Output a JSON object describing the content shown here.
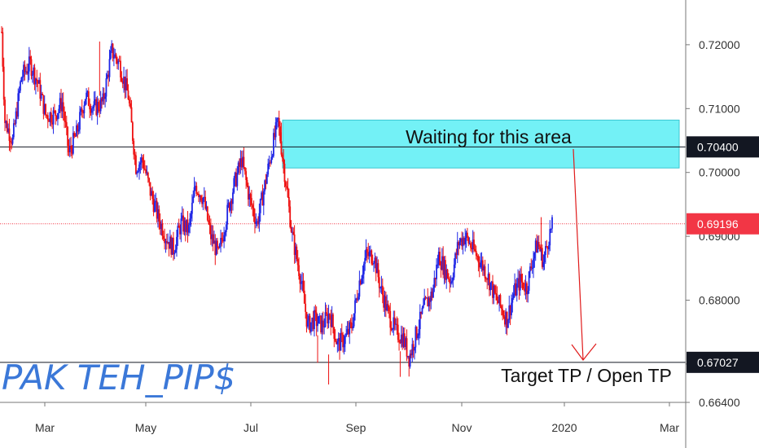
{
  "chart_data": {
    "type": "candlestick",
    "y_ticks": [
      "0.72000",
      "0.71000",
      "0.70000",
      "0.69000",
      "0.68000",
      "0.67000",
      "0.66400"
    ],
    "y_tick_values": [
      0.72,
      0.71,
      0.7,
      0.69,
      0.68,
      0.67,
      0.664
    ],
    "x_ticks": [
      "Mar",
      "May",
      "Jul",
      "Sep",
      "Nov",
      "2020",
      "Mar"
    ],
    "ylim": [
      0.664,
      0.727
    ],
    "horizontal_lines": [
      {
        "value": 0.704,
        "label": "0.70400",
        "color": "#131722",
        "style": "solid"
      },
      {
        "value": 0.67027,
        "label": "0.67027",
        "color": "#131722",
        "style": "solid"
      },
      {
        "value": 0.69196,
        "label": "0.69196",
        "color": "#f23645",
        "style": "dotted"
      }
    ],
    "zone": {
      "y_low": 0.7007,
      "y_high": 0.7082,
      "color": "#00e5ee"
    },
    "annotations": {
      "zone_label": "Waiting for this area",
      "target_label": "Target TP / Open TP"
    },
    "watermark": "PAK TEH_PIP$",
    "colors": {
      "up": "#1f26e6",
      "down": "#ee1111",
      "arrow": "#e01b1b"
    },
    "trend": [
      [
        0,
        0.722
      ],
      [
        3,
        0.708
      ],
      [
        10,
        0.705
      ],
      [
        18,
        0.715
      ],
      [
        26,
        0.717
      ],
      [
        33,
        0.714
      ],
      [
        40,
        0.709
      ],
      [
        48,
        0.709
      ],
      [
        55,
        0.711
      ],
      [
        61,
        0.703
      ],
      [
        68,
        0.706
      ],
      [
        76,
        0.712
      ],
      [
        84,
        0.71
      ],
      [
        92,
        0.711
      ],
      [
        100,
        0.719
      ],
      [
        107,
        0.717
      ],
      [
        115,
        0.712
      ],
      [
        122,
        0.701
      ],
      [
        128,
        0.702
      ],
      [
        135,
        0.697
      ],
      [
        142,
        0.693
      ],
      [
        149,
        0.69
      ],
      [
        156,
        0.688
      ],
      [
        163,
        0.692
      ],
      [
        170,
        0.691
      ],
      [
        176,
        0.698
      ],
      [
        183,
        0.696
      ],
      [
        190,
        0.69
      ],
      [
        197,
        0.687
      ],
      [
        204,
        0.693
      ],
      [
        211,
        0.698
      ],
      [
        218,
        0.702
      ],
      [
        225,
        0.696
      ],
      [
        232,
        0.692
      ],
      [
        239,
        0.698
      ],
      [
        246,
        0.704
      ],
      [
        251,
        0.708
      ],
      [
        257,
        0.7
      ],
      [
        264,
        0.69
      ],
      [
        271,
        0.684
      ],
      [
        278,
        0.676
      ],
      [
        284,
        0.677
      ],
      [
        291,
        0.676
      ],
      [
        298,
        0.678
      ],
      [
        305,
        0.673
      ],
      [
        312,
        0.674
      ],
      [
        318,
        0.676
      ],
      [
        325,
        0.683
      ],
      [
        331,
        0.687
      ],
      [
        338,
        0.687
      ],
      [
        344,
        0.682
      ],
      [
        351,
        0.678
      ],
      [
        358,
        0.675
      ],
      [
        365,
        0.674
      ],
      [
        370,
        0.671
      ],
      [
        377,
        0.675
      ],
      [
        384,
        0.679
      ],
      [
        391,
        0.681
      ],
      [
        397,
        0.687
      ],
      [
        402,
        0.685
      ],
      [
        408,
        0.683
      ],
      [
        415,
        0.689
      ],
      [
        421,
        0.69
      ],
      [
        428,
        0.688
      ],
      [
        435,
        0.686
      ],
      [
        441,
        0.684
      ],
      [
        447,
        0.681
      ],
      [
        453,
        0.679
      ],
      [
        459,
        0.677
      ],
      [
        465,
        0.681
      ],
      [
        471,
        0.683
      ],
      [
        477,
        0.682
      ],
      [
        483,
        0.687
      ],
      [
        487,
        0.689
      ],
      [
        492,
        0.686
      ],
      [
        497,
        0.69
      ],
      [
        500,
        0.6915
      ]
    ]
  }
}
